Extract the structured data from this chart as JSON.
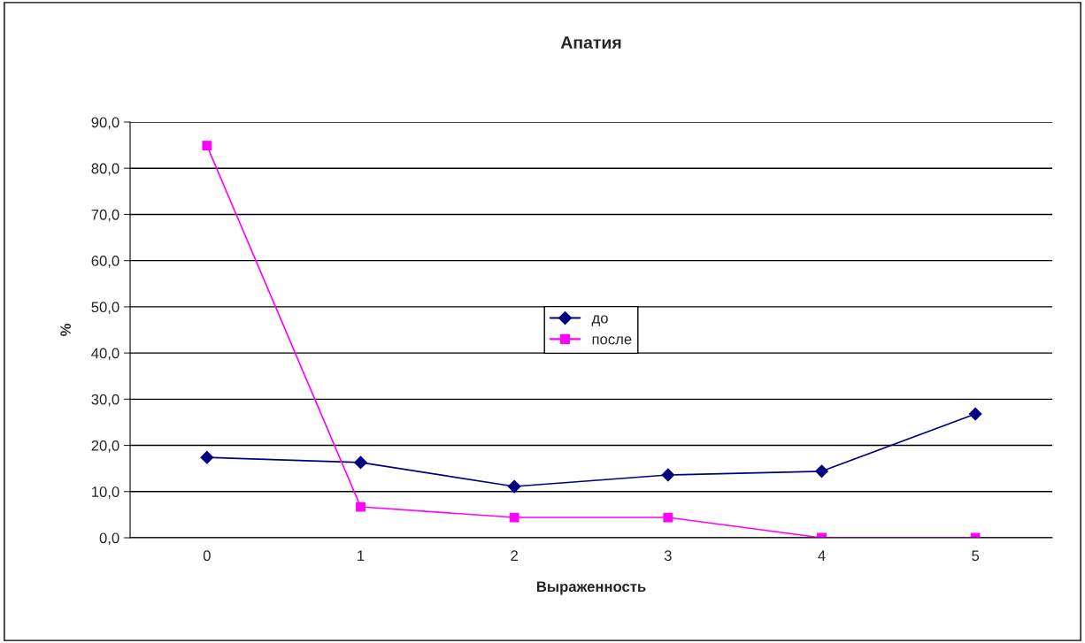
{
  "chart_data": {
    "type": "line",
    "title": "Апатия",
    "xlabel": "Выраженность",
    "ylabel": "%",
    "categories": [
      "0",
      "1",
      "2",
      "3",
      "4",
      "5"
    ],
    "series": [
      {
        "name": "до",
        "color": "#000080",
        "marker": "diamond",
        "values": [
          17.4,
          16.3,
          11.1,
          13.6,
          14.4,
          26.8
        ]
      },
      {
        "name": "после",
        "color": "#ff00ff",
        "marker": "square",
        "values": [
          84.9,
          6.7,
          4.4,
          4.4,
          0.0,
          0.0
        ]
      }
    ],
    "ylim": [
      0,
      90
    ],
    "yticks": [
      {
        "value": 0,
        "label": "0,0"
      },
      {
        "value": 10,
        "label": "10,0"
      },
      {
        "value": 20,
        "label": "20,0"
      },
      {
        "value": 30,
        "label": "30,0"
      },
      {
        "value": 40,
        "label": "40,0"
      },
      {
        "value": 50,
        "label": "50,0"
      },
      {
        "value": 60,
        "label": "60,0"
      },
      {
        "value": 70,
        "label": "70,0"
      },
      {
        "value": 80,
        "label": "80,0"
      },
      {
        "value": 90,
        "label": "90,0"
      }
    ],
    "grid": "y",
    "legend": "center",
    "line_style": "solid"
  }
}
